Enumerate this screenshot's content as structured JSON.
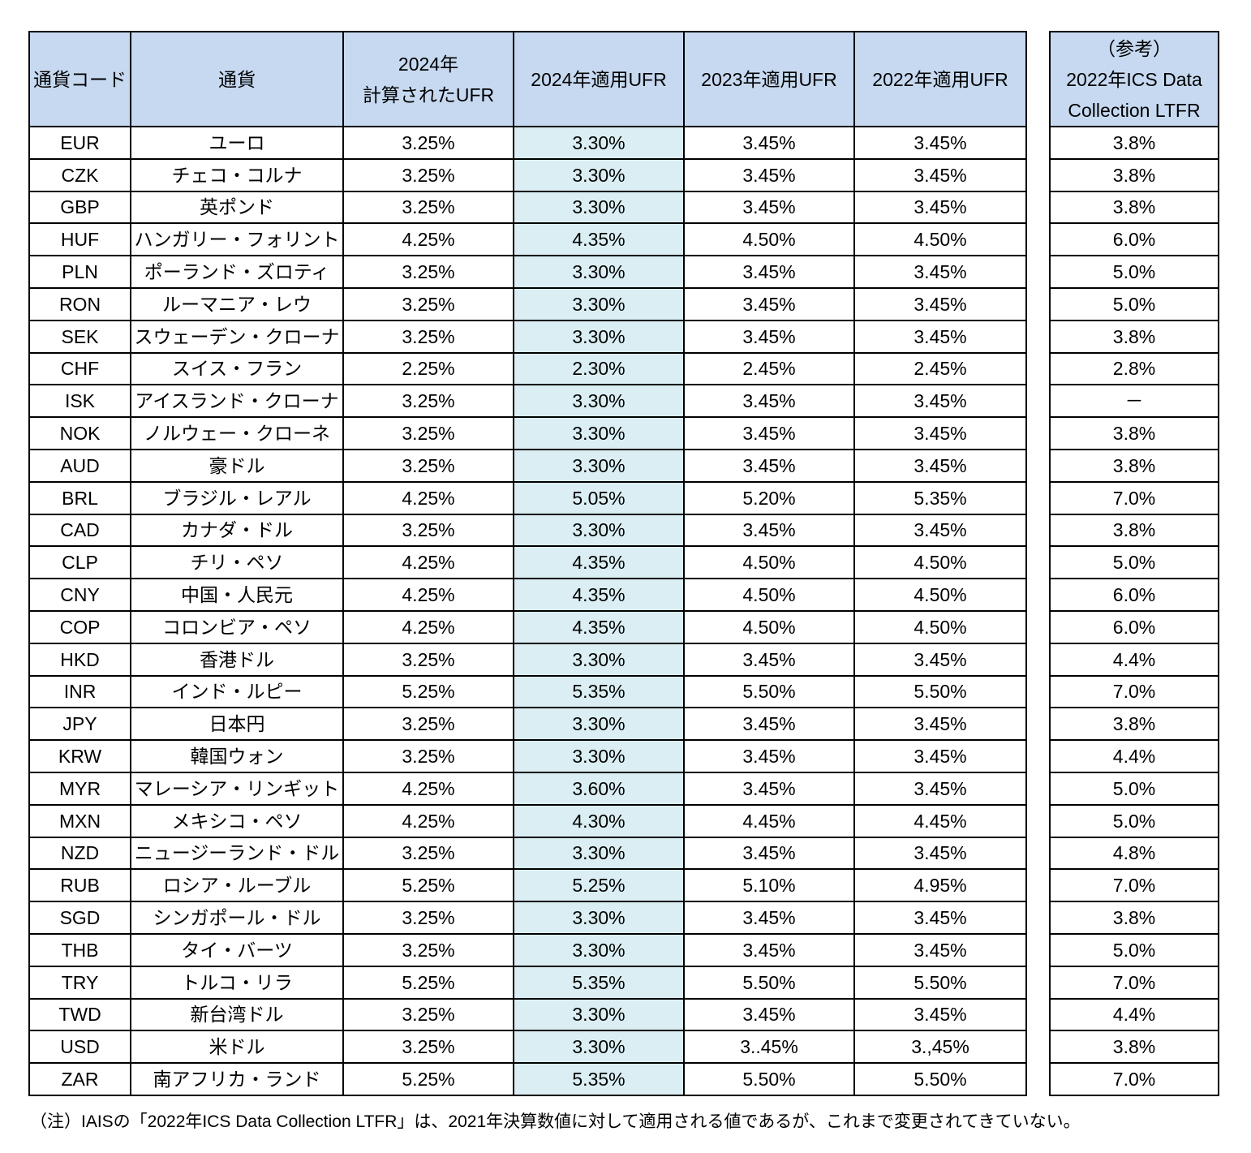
{
  "table": {
    "headers": [
      "通貨コード",
      "通貨",
      "2024年\n計算されたUFR",
      "2024年適用UFR",
      "2023年適用UFR",
      "2022年適用UFR"
    ],
    "rows": [
      [
        "EUR",
        "ユーロ",
        "3.25%",
        "3.30%",
        "3.45%",
        "3.45%"
      ],
      [
        "CZK",
        "チェコ・コルナ",
        "3.25%",
        "3.30%",
        "3.45%",
        "3.45%"
      ],
      [
        "GBP",
        "英ポンド",
        "3.25%",
        "3.30%",
        "3.45%",
        "3.45%"
      ],
      [
        "HUF",
        "ハンガリー・フォリント",
        "4.25%",
        "4.35%",
        "4.50%",
        "4.50%"
      ],
      [
        "PLN",
        "ポーランド・ズロティ",
        "3.25%",
        "3.30%",
        "3.45%",
        "3.45%"
      ],
      [
        "RON",
        "ルーマニア・レウ",
        "3.25%",
        "3.30%",
        "3.45%",
        "3.45%"
      ],
      [
        "SEK",
        "スウェーデン・クローナ",
        "3.25%",
        "3.30%",
        "3.45%",
        "3.45%"
      ],
      [
        "CHF",
        "スイス・フラン",
        "2.25%",
        "2.30%",
        "2.45%",
        "2.45%"
      ],
      [
        "ISK",
        "アイスランド・クローナ",
        "3.25%",
        "3.30%",
        "3.45%",
        "3.45%"
      ],
      [
        "NOK",
        "ノルウェー・クローネ",
        "3.25%",
        "3.30%",
        "3.45%",
        "3.45%"
      ],
      [
        "AUD",
        "豪ドル",
        "3.25%",
        "3.30%",
        "3.45%",
        "3.45%"
      ],
      [
        "BRL",
        "ブラジル・レアル",
        "4.25%",
        "5.05%",
        "5.20%",
        "5.35%"
      ],
      [
        "CAD",
        "カナダ・ドル",
        "3.25%",
        "3.30%",
        "3.45%",
        "3.45%"
      ],
      [
        "CLP",
        "チリ・ペソ",
        "4.25%",
        "4.35%",
        "4.50%",
        "4.50%"
      ],
      [
        "CNY",
        "中国・人民元",
        "4.25%",
        "4.35%",
        "4.50%",
        "4.50%"
      ],
      [
        "COP",
        "コロンビア・ペソ",
        "4.25%",
        "4.35%",
        "4.50%",
        "4.50%"
      ],
      [
        "HKD",
        "香港ドル",
        "3.25%",
        "3.30%",
        "3.45%",
        "3.45%"
      ],
      [
        "INR",
        "インド・ルピー",
        "5.25%",
        "5.35%",
        "5.50%",
        "5.50%"
      ],
      [
        "JPY",
        "日本円",
        "3.25%",
        "3.30%",
        "3.45%",
        "3.45%"
      ],
      [
        "KRW",
        "韓国ウォン",
        "3.25%",
        "3.30%",
        "3.45%",
        "3.45%"
      ],
      [
        "MYR",
        "マレーシア・リンギット",
        "4.25%",
        "3.60%",
        "3.45%",
        "3.45%"
      ],
      [
        "MXN",
        "メキシコ・ペソ",
        "4.25%",
        "4.30%",
        "4.45%",
        "4.45%"
      ],
      [
        "NZD",
        "ニュージーランド・ドル",
        "3.25%",
        "3.30%",
        "3.45%",
        "3.45%"
      ],
      [
        "RUB",
        "ロシア・ルーブル",
        "5.25%",
        "5.25%",
        "5.10%",
        "4.95%"
      ],
      [
        "SGD",
        "シンガポール・ドル",
        "3.25%",
        "3.30%",
        "3.45%",
        "3.45%"
      ],
      [
        "THB",
        "タイ・バーツ",
        "3.25%",
        "3.30%",
        "3.45%",
        "3.45%"
      ],
      [
        "TRY",
        "トルコ・リラ",
        "5.25%",
        "5.35%",
        "5.50%",
        "5.50%"
      ],
      [
        "TWD",
        "新台湾ドル",
        "3.25%",
        "3.30%",
        "3.45%",
        "3.45%"
      ],
      [
        "USD",
        "米ドル",
        "3.25%",
        "3.30%",
        "3..45%",
        "3.,45%"
      ],
      [
        "ZAR",
        "南アフリカ・ランド",
        "5.25%",
        "5.35%",
        "5.50%",
        "5.50%"
      ]
    ]
  },
  "reference": {
    "header": "（参考）\n2022年ICS Data\nCollection LTFR",
    "values": [
      "3.8%",
      "3.8%",
      "3.8%",
      "6.0%",
      "5.0%",
      "5.0%",
      "3.8%",
      "2.8%",
      "－",
      "3.8%",
      "3.8%",
      "7.0%",
      "3.8%",
      "5.0%",
      "6.0%",
      "6.0%",
      "4.4%",
      "7.0%",
      "3.8%",
      "4.4%",
      "5.0%",
      "5.0%",
      "4.8%",
      "7.0%",
      "3.8%",
      "5.0%",
      "7.0%",
      "4.4%",
      "3.8%",
      "7.0%"
    ]
  },
  "note": "（注）IAISの「2022年ICS Data Collection LTFR」は、2021年決算数値に対して適用される値であるが、これまで変更されてきていない。"
}
